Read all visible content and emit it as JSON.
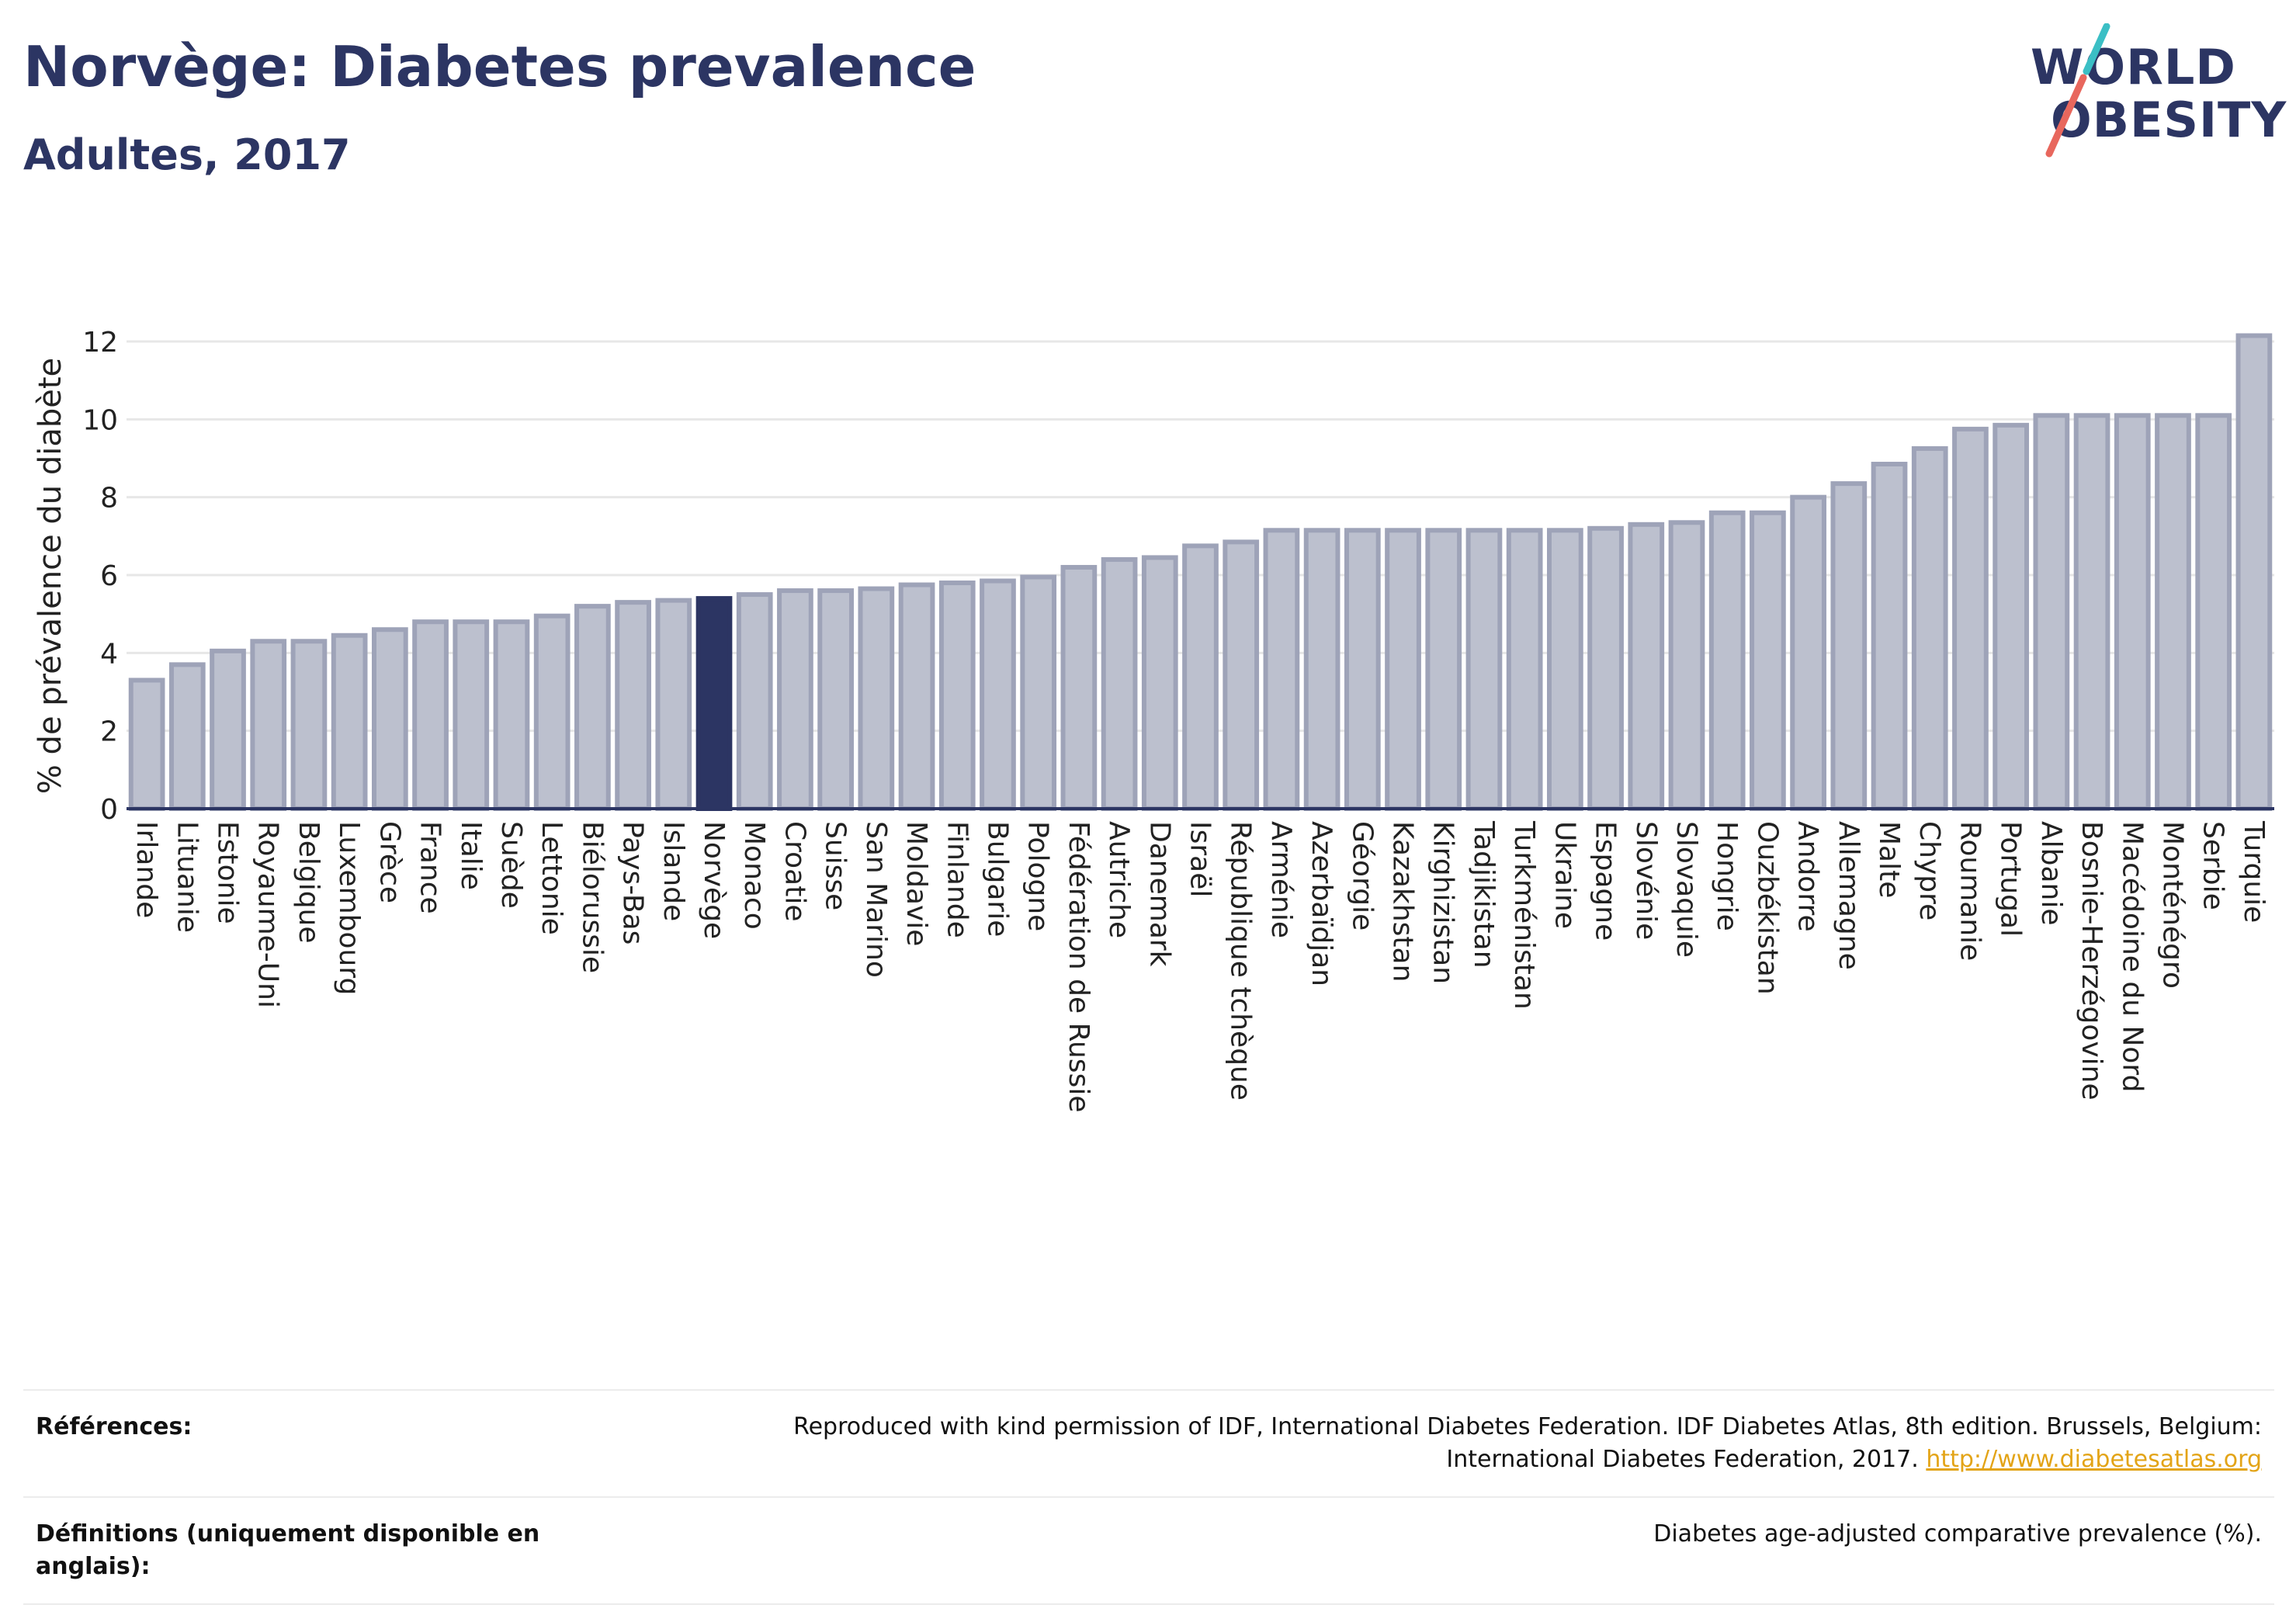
{
  "header": {
    "title": "Norvège: Diabetes prevalence",
    "subtitle": "Adultes, 2017"
  },
  "logo": {
    "line1": "WORLD",
    "line2": "OBESITY",
    "colors": {
      "teal": "#3bbfc5",
      "coral": "#e8675d",
      "navy": "#2c3563"
    }
  },
  "colors": {
    "bar": "#bcc0ce",
    "bar_stroke": "#9ea3b8",
    "highlight": "#2c3563",
    "text": "#2c3563",
    "grid": "#e7e7e7"
  },
  "chart_data": {
    "type": "bar",
    "ylabel": "% de prévalence du diabète",
    "ylim": [
      0,
      12.5
    ],
    "yticks": [
      0,
      2,
      4,
      6,
      8,
      10,
      12
    ],
    "grid": true,
    "highlight": "Norvège",
    "categories": [
      "Irlande",
      "Lituanie",
      "Estonie",
      "Royaume-Uni",
      "Belgique",
      "Luxembourg",
      "Grèce",
      "France",
      "Italie",
      "Suède",
      "Lettonie",
      "Biélorussie",
      "Pays-Bas",
      "Islande",
      "Norvège",
      "Monaco",
      "Croatie",
      "Suisse",
      "San Marino",
      "Moldavie",
      "Finlande",
      "Bulgarie",
      "Pologne",
      "Fédération de Russie",
      "Autriche",
      "Danemark",
      "Israël",
      "République tchèque",
      "Arménie",
      "Azerbaïdjan",
      "Géorgie",
      "Kazakhstan",
      "Kirghizistan",
      "Tadjikistan",
      "Turkménistan",
      "Ukraine",
      "Espagne",
      "Slovénie",
      "Slovaquie",
      "Hongrie",
      "Ouzbékistan",
      "Andorre",
      "Allemagne",
      "Malte",
      "Chypre",
      "Roumanie",
      "Portugal",
      "Albanie",
      "Bosnie-Herzégovine",
      "Macédoine du Nord",
      "Monténégro",
      "Serbie",
      "Turquie"
    ],
    "values": [
      3.3,
      3.7,
      4.05,
      4.3,
      4.3,
      4.45,
      4.6,
      4.8,
      4.8,
      4.8,
      4.95,
      5.2,
      5.3,
      5.35,
      5.4,
      5.5,
      5.6,
      5.6,
      5.65,
      5.75,
      5.8,
      5.85,
      5.95,
      6.2,
      6.4,
      6.45,
      6.75,
      6.85,
      7.15,
      7.15,
      7.15,
      7.15,
      7.15,
      7.15,
      7.15,
      7.15,
      7.2,
      7.3,
      7.35,
      7.6,
      7.6,
      8.0,
      8.35,
      8.85,
      9.25,
      9.75,
      9.85,
      10.1,
      10.1,
      10.1,
      10.1,
      10.1,
      12.15
    ]
  },
  "footer": {
    "references_label": "Références:",
    "references_text": "Reproduced with kind permission of IDF, International Diabetes Federation. IDF Diabetes Atlas, 8th edition. Brussels, Belgium: International Diabetes Federation, 2017.",
    "references_link": "http://www.diabetesatlas.org",
    "definitions_label": "Définitions (uniquement disponible en anglais):",
    "definitions_text": "Diabetes age-adjusted comparative prevalence (%)."
  }
}
